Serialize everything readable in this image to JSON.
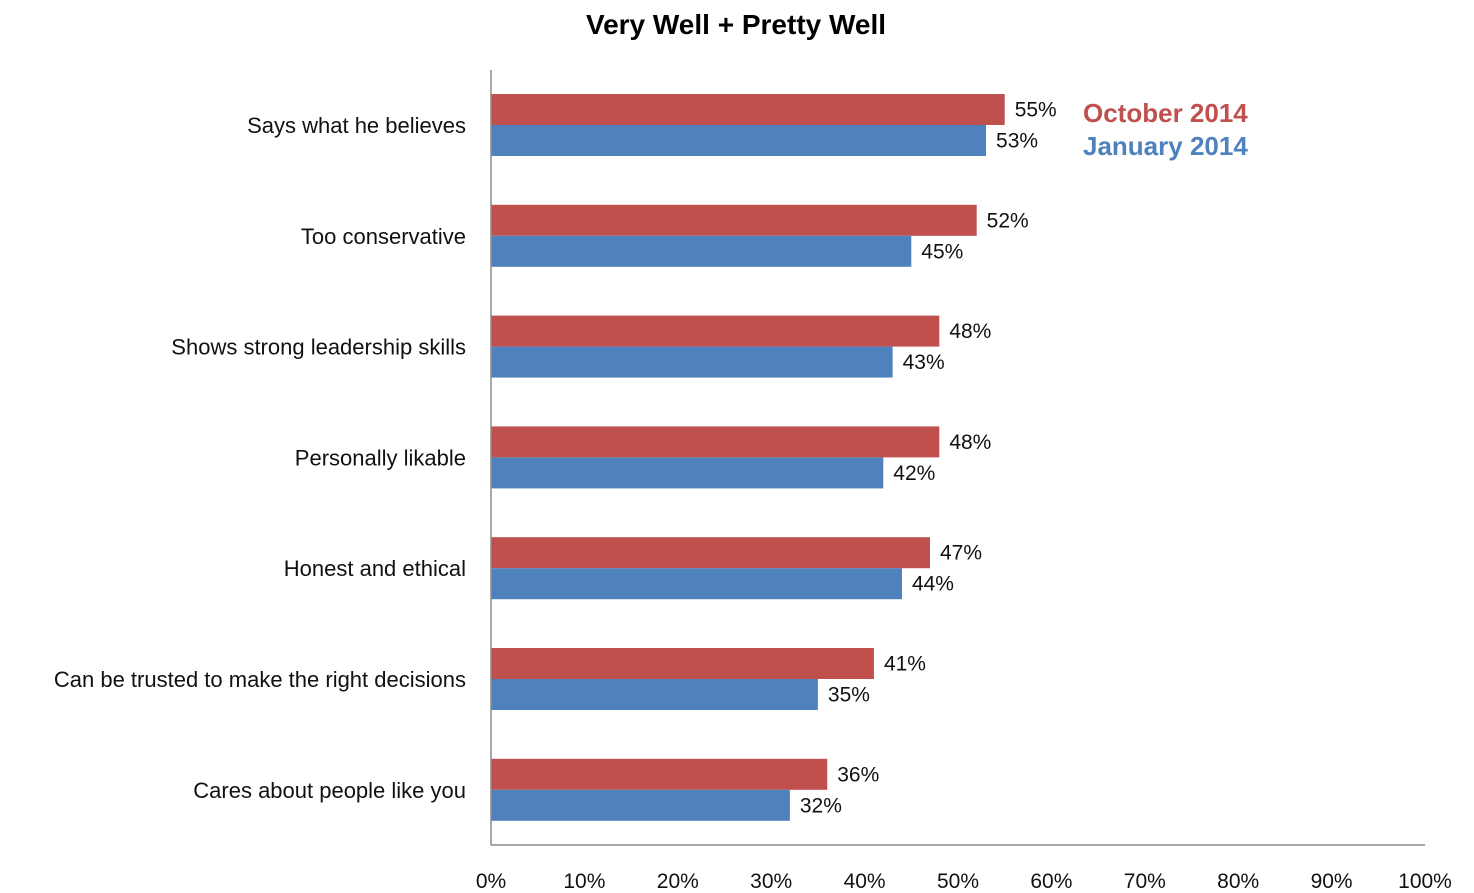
{
  "chart_data": {
    "type": "bar",
    "orientation": "horizontal",
    "title": "Very Well + Pretty Well",
    "categories": [
      "Says what he believes",
      "Too conservative",
      "Shows strong leadership skills",
      "Personally likable",
      "Honest and ethical",
      "Can be trusted to make the right decisions",
      "Cares about people like you"
    ],
    "series": [
      {
        "name": "October 2014",
        "color": "#c0504d",
        "values": [
          55,
          52,
          48,
          48,
          47,
          41,
          36
        ]
      },
      {
        "name": "January 2014",
        "color": "#4f81bd",
        "values": [
          53,
          45,
          43,
          42,
          44,
          35,
          32
        ]
      }
    ],
    "value_format": "percent",
    "xlim": [
      0,
      100
    ],
    "xticks": [
      0,
      10,
      20,
      30,
      40,
      50,
      60,
      70,
      80,
      90,
      100
    ],
    "xtick_labels": [
      "0%",
      "10%",
      "20%",
      "30%",
      "40%",
      "50%",
      "60%",
      "70%",
      "80%",
      "90%",
      "100%"
    ],
    "xlabel": "",
    "ylabel": "",
    "grid": false,
    "legend_position": "top-right"
  }
}
